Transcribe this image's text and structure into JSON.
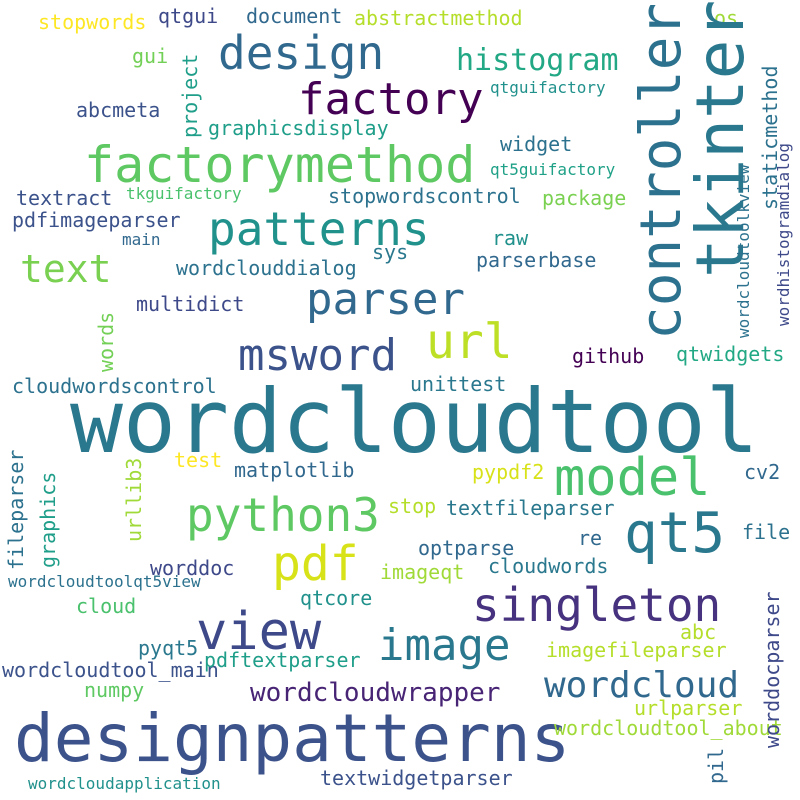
{
  "words": [
    "wordcloudtool",
    "designpatterns",
    "factorymethod",
    "controller",
    "tkinter",
    "patterns",
    "design",
    "factory",
    "singleton",
    "view",
    "qt5",
    "model",
    "python3",
    "parser",
    "msword",
    "image",
    "pdf",
    "wordcloud",
    "text",
    "url",
    "histogram",
    "wordcloudwrapper",
    "stopwordscontrol",
    "stopwords",
    "qtgui",
    "document",
    "abstractmethod",
    "os",
    "gui",
    "project",
    "abcmeta",
    "qtguifactory",
    "graphicsdisplay",
    "widget",
    "staticmethod",
    "qt5guifactory",
    "textract",
    "tkguifactory",
    "package",
    "pdfimageparser",
    "wordcloudtoolkview",
    "wordhistogramdialog",
    "main",
    "raw",
    "sys",
    "wordclouddialog",
    "parserbase",
    "multidict",
    "words",
    "github",
    "qtwidgets",
    "cloudwordscontrol",
    "unittest",
    "test",
    "matplotlib",
    "pypdf2",
    "cv2",
    "fileparser",
    "graphics",
    "urllib3",
    "stop",
    "textfileparser",
    "re",
    "file",
    "worddoc",
    "optparse",
    "cloudwords",
    "wordcloudtoolqt5view",
    "imageqt",
    "worddocparser",
    "cloud",
    "qtcore",
    "abc",
    "pyqt5",
    "imagefileparser",
    "wordcloudtool_main",
    "pdftextparser",
    "numpy",
    "urlparser",
    "wordcloudtool_about",
    "pil",
    "wordcloudapplication",
    "textwidgetparser"
  ],
  "colors": {
    "background": "#ffffff"
  }
}
